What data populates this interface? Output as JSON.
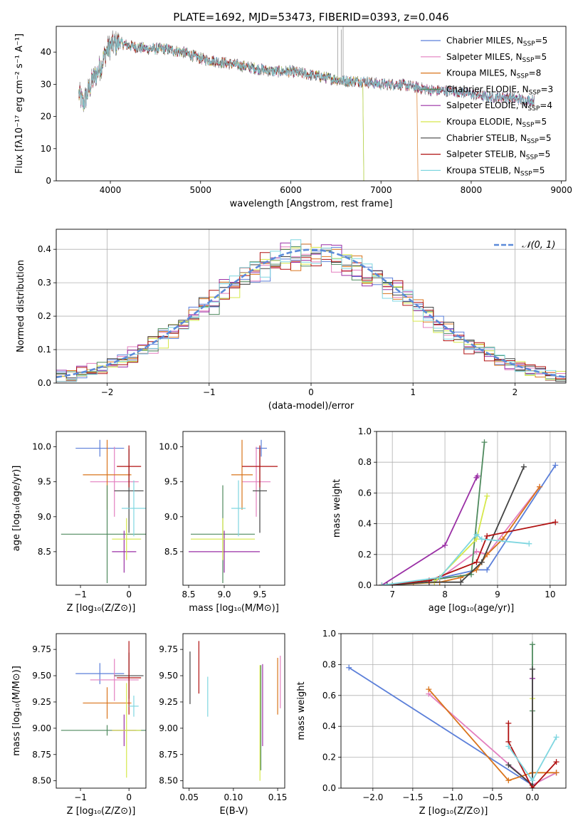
{
  "figure_title": "PLATE=1692, MJD=53473, FIBERID=0393, z=0.046",
  "colors": {
    "Chabrier MILES": "#5b7fd9",
    "Salpeter MILES": "#e37fbf",
    "Kroupa MILES": "#d9741c",
    "Chabrier ELODIE": "#4f8a5e",
    "Salpeter ELODIE": "#9a2fa5",
    "Kroupa ELODIE": "#d6e84a",
    "Chabrier STELIB": "#444444",
    "Salpeter STELIB": "#b01010",
    "Kroupa STELIB": "#7fd6e0"
  },
  "chart_data": [
    {
      "id": "spectrum",
      "type": "line",
      "title": "PLATE=1692, MJD=53473, FIBERID=0393, z=0.046",
      "xlabel": "wavelength [Angstrom, rest frame]",
      "ylabel": "Flux [fλ10⁻¹⁷ erg cm⁻² s⁻¹ A⁻¹]",
      "xlim": [
        3400,
        9050
      ],
      "ylim": [
        0,
        48
      ],
      "xticks": [
        4000,
        5000,
        6000,
        7000,
        8000,
        9000
      ],
      "yticks": [
        0,
        10,
        20,
        30,
        40
      ],
      "legend_position": "top-right",
      "legend": [
        {
          "label": "Chabrier MILES, N",
          "sub": "SSP",
          "tail": "=5"
        },
        {
          "label": "Salpeter MILES, N",
          "sub": "SSP",
          "tail": "=5"
        },
        {
          "label": "Kroupa MILES, N",
          "sub": "SSP",
          "tail": "=8"
        },
        {
          "label": "Chabrier ELODIE, N",
          "sub": "SSP",
          "tail": "=3"
        },
        {
          "label": "Salpeter ELODIE, N",
          "sub": "SSP",
          "tail": "=4"
        },
        {
          "label": "Kroupa ELODIE, N",
          "sub": "SSP",
          "tail": "=5"
        },
        {
          "label": "Chabrier STELIB, N",
          "sub": "SSP",
          "tail": "=5"
        },
        {
          "label": "Salpeter STELIB, N",
          "sub": "SSP",
          "tail": "=5"
        },
        {
          "label": "Kroupa STELIB, N",
          "sub": "SSP",
          "tail": "=5"
        }
      ],
      "continuum": [
        [
          3650,
          27
        ],
        [
          3700,
          24
        ],
        [
          3800,
          31
        ],
        [
          3900,
          36
        ],
        [
          3950,
          40
        ],
        [
          4000,
          42
        ],
        [
          4100,
          43
        ],
        [
          4200,
          42
        ],
        [
          4400,
          41
        ],
        [
          4600,
          41
        ],
        [
          4800,
          40
        ],
        [
          5000,
          38
        ],
        [
          5200,
          37
        ],
        [
          5400,
          36
        ],
        [
          5600,
          35
        ],
        [
          5800,
          34
        ],
        [
          6000,
          34
        ],
        [
          6200,
          33
        ],
        [
          6400,
          32
        ],
        [
          6600,
          31
        ],
        [
          6800,
          31
        ],
        [
          7000,
          30
        ],
        [
          7200,
          30
        ],
        [
          7400,
          29
        ],
        [
          7600,
          28
        ],
        [
          7800,
          28
        ],
        [
          8000,
          27
        ],
        [
          8200,
          26
        ],
        [
          8400,
          26
        ],
        [
          8600,
          25
        ],
        [
          8700,
          25
        ]
      ],
      "data_spikes": [
        [
          6520,
          48
        ],
        [
          6560,
          47
        ],
        [
          6580,
          48
        ]
      ],
      "model_ends": [
        {
          "series": "Kroupa MILES",
          "end_x": 7400
        },
        {
          "series": "Kroupa ELODIE",
          "end_x": 6800
        },
        {
          "series": "Chabrier ELODIE",
          "end_x": 6800
        }
      ]
    },
    {
      "id": "residuals",
      "type": "area",
      "xlabel": "(data-model)/error",
      "ylabel": "Normed distribution",
      "xlim": [
        -2.5,
        2.5
      ],
      "ylim": [
        0,
        0.46
      ],
      "xticks": [
        -2,
        -1,
        0,
        1,
        2
      ],
      "yticks": [
        0.0,
        0.1,
        0.2,
        0.3,
        0.4
      ],
      "grid": true,
      "legend_label": "𝒩(0, 1)",
      "gaussian": {
        "mean": 0,
        "sigma": 1
      }
    },
    {
      "id": "age_vs_Z",
      "type": "scatter",
      "xlabel": "Z [log₁₀(Z/Z⊙)]",
      "ylabel": "age  [log₁₀(age/yr)]",
      "xlim": [
        -1.5,
        0.35
      ],
      "ylim": [
        8.02,
        10.22
      ],
      "xticks": [
        -1,
        0
      ],
      "yticks": [
        8.5,
        9.0,
        9.5,
        10.0
      ],
      "points": [
        {
          "series": "Chabrier MILES",
          "x": -0.6,
          "y": 9.98,
          "xerr": 0.5,
          "yerr": 0.12
        },
        {
          "series": "Salpeter MILES",
          "x": -0.3,
          "y": 9.5,
          "xerr": 0.5,
          "yerr": 0.5
        },
        {
          "series": "Kroupa MILES",
          "x": -0.45,
          "y": 9.6,
          "xerr": 0.5,
          "yerr": 0.5
        },
        {
          "series": "Chabrier ELODIE",
          "x": -0.45,
          "y": 8.75,
          "xerr": 0.95,
          "yerr": 0.7
        },
        {
          "series": "Salpeter ELODIE",
          "x": -0.1,
          "y": 8.5,
          "xerr": 0.25,
          "yerr": 0.3
        },
        {
          "series": "Kroupa ELODIE",
          "x": -0.05,
          "y": 8.68,
          "xerr": 0.3,
          "yerr": 0.3
        },
        {
          "series": "Chabrier STELIB",
          "x": 0.0,
          "y": 9.37,
          "xerr": 0.3,
          "yerr": 0.6
        },
        {
          "series": "Salpeter STELIB",
          "x": 0.0,
          "y": 9.72,
          "xerr": 0.25,
          "yerr": 0.3
        },
        {
          "series": "Kroupa STELIB",
          "x": 0.1,
          "y": 9.12,
          "xerr": 0.25,
          "yerr": 0.4
        }
      ]
    },
    {
      "id": "age_vs_mass",
      "type": "scatter",
      "xlabel": "mass [log₁₀(M/M⊙)]",
      "ylabel": "",
      "xlim": [
        8.42,
        9.85
      ],
      "ylim": [
        8.02,
        10.22
      ],
      "xticks": [
        8.5,
        9.0,
        9.5
      ],
      "yticks": [
        8.5,
        9.0,
        9.5,
        10.0
      ],
      "points": [
        {
          "series": "Chabrier MILES",
          "x": 9.52,
          "y": 9.98,
          "xerr": 0.08,
          "yerr": 0.12
        },
        {
          "series": "Salpeter MILES",
          "x": 9.45,
          "y": 9.5,
          "xerr": 0.2,
          "yerr": 0.5
        },
        {
          "series": "Kroupa MILES",
          "x": 9.25,
          "y": 9.6,
          "xerr": 0.15,
          "yerr": 0.5
        },
        {
          "series": "Chabrier ELODIE",
          "x": 8.98,
          "y": 8.75,
          "xerr": 0.45,
          "yerr": 0.7
        },
        {
          "series": "Salpeter ELODIE",
          "x": 9.0,
          "y": 8.5,
          "xerr": 0.5,
          "yerr": 0.3
        },
        {
          "series": "Kroupa ELODIE",
          "x": 8.98,
          "y": 8.68,
          "xerr": 0.45,
          "yerr": 0.3
        },
        {
          "series": "Chabrier STELIB",
          "x": 9.5,
          "y": 9.37,
          "xerr": 0.1,
          "yerr": 0.6
        },
        {
          "series": "Salpeter STELIB",
          "x": 9.5,
          "y": 9.72,
          "xerr": 0.25,
          "yerr": 0.3
        },
        {
          "series": "Kroupa STELIB",
          "x": 9.2,
          "y": 9.12,
          "xerr": 0.1,
          "yerr": 0.4
        }
      ]
    },
    {
      "id": "mass_weight_vs_age",
      "type": "line",
      "xlabel": "age  [log₁₀(age/yr)]",
      "ylabel": "mass weight",
      "xlim": [
        6.7,
        10.3
      ],
      "ylim": [
        0,
        1.0
      ],
      "xticks": [
        7,
        8,
        9,
        10
      ],
      "yticks": [
        0.0,
        0.2,
        0.4,
        0.6,
        0.8,
        1.0
      ],
      "grid": true,
      "series": [
        {
          "name": "Chabrier MILES",
          "x": [
            6.8,
            7.7,
            8.6,
            8.8,
            10.1
          ],
          "y": [
            0.0,
            0.03,
            0.1,
            0.1,
            0.78
          ]
        },
        {
          "name": "Salpeter MILES",
          "x": [
            6.8,
            7.8,
            8.6,
            8.8,
            9.8
          ],
          "y": [
            0.0,
            0.02,
            0.22,
            0.2,
            0.64
          ]
        },
        {
          "name": "Kroupa MILES",
          "x": [
            6.8,
            7.4,
            7.9,
            8.3,
            8.6,
            8.7,
            8.8,
            9.1,
            9.8
          ],
          "y": [
            0.0,
            0.01,
            0.02,
            0.05,
            0.1,
            0.15,
            0.2,
            0.3,
            0.64
          ]
        },
        {
          "name": "Chabrier ELODIE",
          "x": [
            7.0,
            8.5,
            8.75
          ],
          "y": [
            0.0,
            0.07,
            0.93
          ]
        },
        {
          "name": "Salpeter ELODIE",
          "x": [
            6.8,
            8.0,
            8.6,
            8.62
          ],
          "y": [
            0.0,
            0.26,
            0.7,
            0.71
          ]
        },
        {
          "name": "Kroupa ELODIE",
          "x": [
            6.8,
            7.8,
            8.6,
            8.8
          ],
          "y": [
            0.0,
            0.02,
            0.3,
            0.58
          ]
        },
        {
          "name": "Chabrier STELIB",
          "x": [
            6.9,
            7.7,
            8.3,
            8.7,
            9.5
          ],
          "y": [
            0.0,
            0.02,
            0.02,
            0.15,
            0.77
          ]
        },
        {
          "name": "Salpeter STELIB",
          "x": [
            6.8,
            7.7,
            8.6,
            8.8,
            10.1
          ],
          "y": [
            0.0,
            0.03,
            0.15,
            0.32,
            0.41
          ]
        },
        {
          "name": "Kroupa STELIB",
          "x": [
            6.8,
            7.9,
            8.6,
            8.7,
            9.6
          ],
          "y": [
            0.0,
            0.05,
            0.33,
            0.3,
            0.27
          ]
        }
      ]
    },
    {
      "id": "mass_vs_Z",
      "type": "scatter",
      "xlabel": "Z [log₁₀(Z/Z⊙)]",
      "ylabel": "mass [log₁₀(M/M⊙)]",
      "xlim": [
        -1.5,
        0.35
      ],
      "ylim": [
        8.43,
        9.9
      ],
      "xticks": [
        -1,
        0
      ],
      "yticks": [
        8.5,
        8.75,
        9.0,
        9.25,
        9.5,
        9.75
      ],
      "points": [
        {
          "series": "Chabrier MILES",
          "x": -0.6,
          "y": 9.52,
          "xerr": 0.5,
          "yerr": 0.1
        },
        {
          "series": "Salpeter MILES",
          "x": -0.3,
          "y": 9.46,
          "xerr": 0.5,
          "yerr": 0.2
        },
        {
          "series": "Kroupa MILES",
          "x": -0.45,
          "y": 9.24,
          "xerr": 0.5,
          "yerr": 0.15
        },
        {
          "series": "Chabrier ELODIE",
          "x": -0.45,
          "y": 8.98,
          "xerr": 0.95,
          "yerr": 0.05
        },
        {
          "series": "Salpeter ELODIE",
          "x": -0.1,
          "y": 8.98,
          "xerr": 0.25,
          "yerr": 0.15
        },
        {
          "series": "Kroupa ELODIE",
          "x": -0.05,
          "y": 8.98,
          "xerr": 0.3,
          "yerr": 0.45
        },
        {
          "series": "Chabrier STELIB",
          "x": 0.0,
          "y": 9.5,
          "xerr": 0.3,
          "yerr": 0.22
        },
        {
          "series": "Salpeter STELIB",
          "x": 0.0,
          "y": 9.48,
          "xerr": 0.25,
          "yerr": 0.35
        },
        {
          "series": "Kroupa STELIB",
          "x": 0.1,
          "y": 9.21,
          "xerr": 0.1,
          "yerr": 0.1
        }
      ]
    },
    {
      "id": "mass_vs_ebv",
      "type": "scatter",
      "xlabel": "E(B-V)",
      "ylabel": "",
      "xlim": [
        0.043,
        0.158
      ],
      "ylim": [
        8.43,
        9.9
      ],
      "xticks": [
        0.05,
        0.1,
        0.15
      ],
      "yticks": [
        8.5,
        8.75,
        9.0,
        9.25,
        9.5,
        9.75
      ],
      "points": [
        {
          "series": "Chabrier STELIB",
          "x": 0.051,
          "y": 9.48,
          "yerr": 0.25
        },
        {
          "series": "Salpeter STELIB",
          "x": 0.061,
          "y": 9.58,
          "yerr": 0.25
        },
        {
          "series": "Kroupa STELIB",
          "x": 0.071,
          "y": 9.3,
          "yerr": 0.19
        },
        {
          "series": "Kroupa ELODIE",
          "x": 0.13,
          "y": 9.05,
          "yerr": 0.55
        },
        {
          "series": "Salpeter ELODIE",
          "x": 0.133,
          "y": 9.22,
          "yerr": 0.39
        },
        {
          "series": "Chabrier ELODIE",
          "x": 0.131,
          "y": 9.1,
          "yerr": 0.5
        },
        {
          "series": "Kroupa MILES",
          "x": 0.15,
          "y": 9.4,
          "yerr": 0.27
        },
        {
          "series": "Salpeter MILES",
          "x": 0.153,
          "y": 9.44,
          "yerr": 0.25
        }
      ]
    },
    {
      "id": "mass_weight_vs_Z",
      "type": "line",
      "xlabel": "Z [log₁₀(Z/Z⊙)]",
      "ylabel": "mass weight",
      "xlim": [
        -2.4,
        0.42
      ],
      "ylim": [
        0,
        1.0
      ],
      "xticks": [
        -2.0,
        -1.5,
        -1.0,
        -0.5,
        0.0
      ],
      "yticks": [
        0.0,
        0.2,
        0.4,
        0.6,
        0.8,
        1.0
      ],
      "grid": true,
      "series": [
        {
          "name": "Chabrier MILES",
          "x": [
            -2.3,
            0.0,
            0.3
          ],
          "y": [
            0.78,
            0.02,
            0.1
          ]
        },
        {
          "name": "Salpeter MILES",
          "x": [
            -1.3,
            0.0,
            0.3
          ],
          "y": [
            0.61,
            0.02,
            0.1
          ]
        },
        {
          "name": "Kroupa MILES",
          "x": [
            -1.3,
            -0.3,
            0.0,
            0.3
          ],
          "y": [
            0.64,
            0.05,
            0.1,
            0.1
          ]
        },
        {
          "name": "Chabrier ELODIE",
          "x": [
            0.0,
            0.0,
            0.0
          ],
          "y": [
            0.0,
            0.5,
            0.93
          ]
        },
        {
          "name": "Salpeter ELODIE",
          "x": [
            0.0,
            0.0
          ],
          "y": [
            0.0,
            0.71
          ]
        },
        {
          "name": "Kroupa ELODIE",
          "x": [
            0.0,
            0.0
          ],
          "y": [
            0.0,
            0.58
          ]
        },
        {
          "name": "Chabrier STELIB",
          "x": [
            -0.3,
            0.0,
            0.0
          ],
          "y": [
            0.15,
            0.02,
            0.77
          ]
        },
        {
          "name": "Salpeter STELIB",
          "x": [
            -0.3,
            -0.3,
            0.0,
            0.3
          ],
          "y": [
            0.42,
            0.3,
            0.0,
            0.17
          ]
        },
        {
          "name": "Kroupa STELIB",
          "x": [
            -0.3,
            0.0,
            0.3
          ],
          "y": [
            0.27,
            0.05,
            0.33
          ]
        }
      ]
    }
  ]
}
